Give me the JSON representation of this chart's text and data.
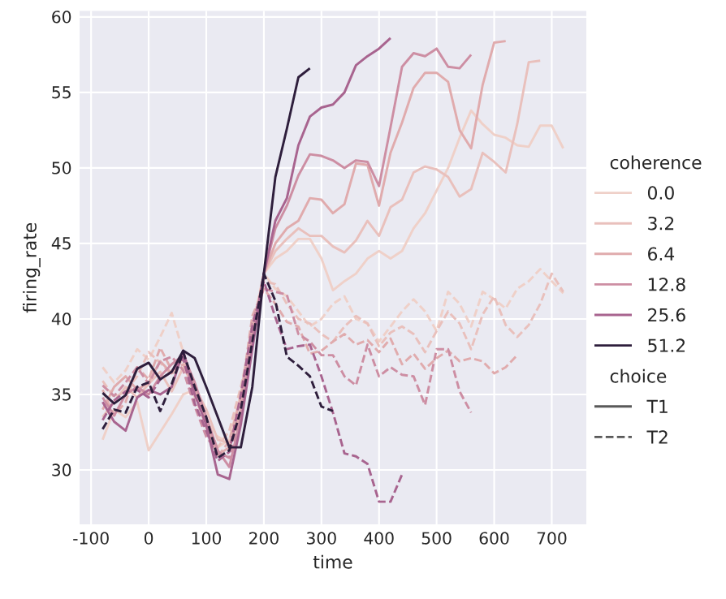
{
  "chart_data": {
    "type": "line",
    "xlabel": "time",
    "ylabel": "firing_rate",
    "legend_title": "coherence",
    "legend": "right",
    "grid": true,
    "marker": "none",
    "annotations": [
      "choice",
      "T1",
      "T2"
    ],
    "xlim": [
      -120,
      760
    ],
    "ylim": [
      26.4,
      60.4
    ],
    "xticks": [
      -100,
      0,
      100,
      200,
      300,
      400,
      500,
      600,
      700
    ],
    "yticks": [
      30,
      35,
      40,
      45,
      50,
      55,
      60
    ],
    "x": [
      -80,
      -60,
      -40,
      -20,
      0,
      20,
      40,
      60,
      80,
      100,
      120,
      140,
      160,
      180,
      200,
      220,
      240,
      260,
      280,
      300,
      320,
      340,
      360,
      380,
      400,
      420,
      440,
      460,
      480,
      500,
      520,
      540,
      560,
      580,
      600,
      620,
      640,
      660,
      680,
      700,
      720
    ],
    "series": [
      {
        "name": "0.0",
        "color": "#efd0c8",
        "line_style": "solid",
        "values": [
          32.0,
          34.0,
          33.5,
          34.5,
          31.3,
          32.5,
          33.7,
          35,
          35.3,
          33,
          31.5,
          32,
          35,
          39,
          43,
          44,
          44.5,
          45.3,
          45.3,
          44,
          41.9,
          42.5,
          43,
          44,
          44.5,
          44,
          44.5,
          46,
          47,
          48.5,
          50,
          52,
          53.8,
          52.9,
          52.2,
          52.0,
          51.5,
          51.4,
          52.8,
          52.8,
          51.3
        ]
      },
      {
        "color": "#efd0c8",
        "line_style": "dashed",
        "values": [
          36.8,
          35.8,
          36.6,
          38.0,
          37.3,
          38.8,
          40.4,
          37.8,
          35.0,
          33.3,
          32.2,
          31.8,
          35.0,
          39.5,
          43,
          42,
          41.5,
          40.5,
          39.5,
          40,
          41,
          41.5,
          40,
          39.7,
          38.5,
          39.5,
          40.5,
          41.3,
          40.5,
          39.2,
          41.8,
          41,
          39.5,
          41.8,
          41.3,
          40.7,
          42,
          42.5,
          43.3,
          42.5,
          41.7
        ]
      },
      {
        "name": "3.2",
        "color": "#e9c0bc",
        "line_style": "solid",
        "values": [
          33.5,
          34.5,
          35.5,
          34.8,
          35.7,
          36.5,
          35.2,
          36.8,
          35.5,
          34,
          32,
          31.8,
          33.5,
          38.5,
          43,
          44.5,
          45.3,
          46,
          45.5,
          45.5,
          44.8,
          44.4,
          45.2,
          46.5,
          45.5,
          47.4,
          47.9,
          49.7,
          50.1,
          49.9,
          49.4,
          48.1,
          48.6,
          51.0,
          50.4,
          49.7,
          52.9,
          57.0,
          57.1,
          null,
          null
        ]
      },
      {
        "color": "#e9c0bc",
        "line_style": "dashed",
        "values": [
          35.9,
          34.8,
          35.2,
          36.2,
          37.8,
          37.1,
          36.3,
          37.4,
          34.8,
          33.0,
          31.5,
          32.6,
          35.5,
          39.0,
          42.5,
          42.3,
          41,
          40,
          39.7,
          39,
          38.5,
          39.5,
          40.2,
          39.7,
          38.2,
          39.1,
          39.5,
          39.0,
          37.8,
          39.2,
          40.5,
          39.7,
          38.0,
          40.3,
          41.5,
          39.6,
          38.8,
          39.6,
          41.0,
          43.0,
          41.8
        ]
      },
      {
        "name": "6.4",
        "color": "#e0abad",
        "line_style": "solid",
        "values": [
          34.0,
          35.5,
          36.2,
          35.3,
          35.8,
          37.2,
          36.4,
          37.8,
          35.5,
          33,
          31,
          31.5,
          34,
          39,
          43,
          45,
          46,
          46.5,
          48,
          47.9,
          47.0,
          47.6,
          50.3,
          50.2,
          47.5,
          51,
          53,
          55.3,
          56.3,
          56.3,
          55.7,
          52.5,
          51.3,
          55.5,
          58.3,
          58.4,
          null,
          null,
          null,
          null,
          null
        ]
      },
      {
        "color": "#e0abad",
        "line_style": "dashed",
        "values": [
          35.3,
          33.6,
          34.5,
          36.8,
          36.0,
          38.1,
          36.6,
          37.0,
          35.2,
          32.8,
          30.9,
          31.9,
          34.8,
          40.2,
          42,
          41,
          39.8,
          39.5,
          37.7,
          37.9,
          38.5,
          39,
          38.3,
          38.6,
          37.8,
          38.7,
          37,
          37.7,
          36.7,
          37.4,
          37.9,
          37.2,
          37.4,
          37.2,
          36.4,
          36.8,
          37.6,
          null,
          null,
          null,
          null
        ]
      },
      {
        "name": "12.8",
        "color": "#cd8ea3",
        "line_style": "solid",
        "values": [
          34.8,
          33.6,
          35.0,
          35.5,
          35.0,
          36.2,
          37.0,
          37.6,
          35.8,
          33.5,
          31.3,
          30.2,
          33.5,
          38.5,
          43,
          46,
          47.5,
          49.5,
          50.9,
          50.8,
          50.5,
          50.0,
          50.5,
          50.4,
          48.8,
          52.7,
          56.7,
          57.6,
          57.4,
          57.9,
          56.7,
          56.6,
          57.5,
          null,
          null,
          null,
          null,
          null,
          null,
          null,
          null
        ]
      },
      {
        "color": "#cd8ea3",
        "line_style": "dashed",
        "values": [
          35.6,
          34.9,
          35.8,
          36.8,
          35.7,
          37.2,
          37.5,
          36.6,
          34.2,
          32.2,
          31.2,
          30.8,
          34.0,
          39.8,
          42,
          41.8,
          41.6,
          39,
          38.5,
          37.6,
          37.6,
          36.2,
          35.6,
          38.3,
          36.2,
          36.8,
          36.3,
          36.2,
          34.3,
          38.0,
          38.0,
          35.2,
          33.8,
          null,
          null,
          null,
          null,
          null,
          null,
          null,
          null
        ]
      },
      {
        "name": "25.6",
        "color": "#a8648f",
        "line_style": "solid",
        "values": [
          34.5,
          33.2,
          32.6,
          34.8,
          35.3,
          35.0,
          35.5,
          37.9,
          35,
          33,
          29.7,
          29.4,
          33,
          38,
          43,
          46.5,
          48,
          51.5,
          53.4,
          54,
          54.2,
          55,
          56.8,
          57.4,
          57.9,
          58.6,
          null,
          null,
          null,
          null,
          null,
          null,
          null,
          null,
          null,
          null,
          null,
          null,
          null,
          null,
          null
        ]
      },
      {
        "color": "#a8648f",
        "line_style": "dashed",
        "values": [
          33.3,
          34.6,
          35.2,
          35.3,
          34.8,
          36.0,
          36.5,
          37.4,
          34.4,
          32.6,
          30.6,
          31.2,
          35.0,
          39.5,
          42.5,
          40.1,
          38.0,
          38.2,
          38.3,
          36.2,
          33.8,
          31.1,
          30.9,
          30.4,
          27.9,
          27.9,
          29.7,
          null,
          null,
          null,
          null,
          null,
          null,
          null,
          null,
          null,
          null,
          null,
          null,
          null,
          null
        ]
      },
      {
        "name": "51.2",
        "color": "#2e1e3c",
        "line_style": "solid",
        "values": [
          35.1,
          34.4,
          34.95,
          36.7,
          37.1,
          36.0,
          36.5,
          37.9,
          37.4,
          35.5,
          33.5,
          31.5,
          31.5,
          35.5,
          43.0,
          49.4,
          52.6,
          56.0,
          56.6,
          null,
          null,
          null,
          null,
          null,
          null,
          null,
          null,
          null,
          null,
          null,
          null,
          null,
          null,
          null,
          null,
          null,
          null,
          null,
          null,
          null,
          null
        ]
      },
      {
        "color": "#2e1e3c",
        "line_style": "dashed",
        "values": [
          32.7,
          34.0,
          33.8,
          35.5,
          35.8,
          33.9,
          35.7,
          37.8,
          35.5,
          33.5,
          30.8,
          31.3,
          34,
          38.5,
          43,
          41.2,
          37.5,
          36.9,
          36.2,
          34.2,
          33.9,
          null,
          null,
          null,
          null,
          null,
          null,
          null,
          null,
          null,
          null,
          null,
          null,
          null,
          null,
          null,
          null,
          null,
          null,
          null,
          null
        ]
      }
    ]
  }
}
